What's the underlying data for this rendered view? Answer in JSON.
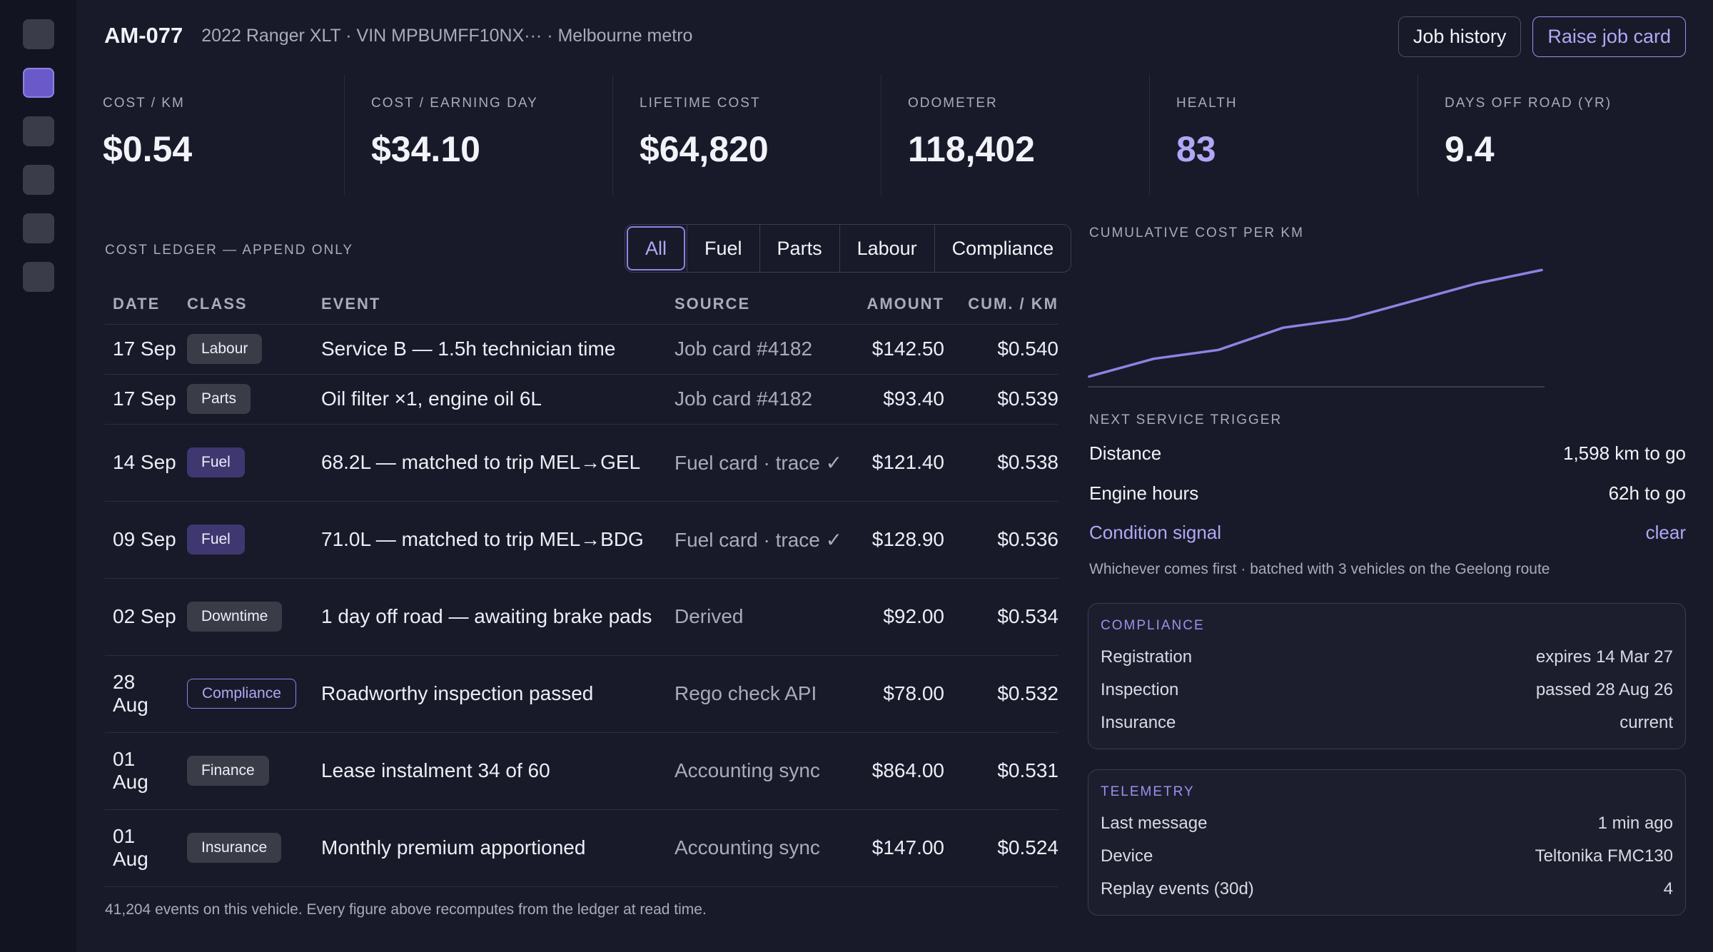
{
  "sidebar": {
    "items": [
      "nav-1",
      "nav-2",
      "nav-3",
      "nav-4",
      "nav-5",
      "nav-6"
    ],
    "active_index": 1
  },
  "header": {
    "unit_id": "AM-077",
    "subtitle": "2022 Ranger XLT · VIN MPBUMFF10NX··· · Melbourne metro",
    "job_history_label": "Job history",
    "raise_job_label": "Raise job card"
  },
  "kpis": [
    {
      "label": "COST / KM",
      "value": "$0.54"
    },
    {
      "label": "COST / EARNING DAY",
      "value": "$34.10"
    },
    {
      "label": "LIFETIME COST",
      "value": "$64,820"
    },
    {
      "label": "ODOMETER",
      "value": "118,402"
    },
    {
      "label": "HEALTH",
      "value": "83"
    },
    {
      "label": "DAYS OFF ROAD (YR)",
      "value": "9.4"
    }
  ],
  "ledger": {
    "title": "COST LEDGER — APPEND ONLY",
    "filters": [
      "All",
      "Fuel",
      "Parts",
      "Labour",
      "Compliance"
    ],
    "active_filter": "All",
    "columns": [
      "DATE",
      "CLASS",
      "EVENT",
      "SOURCE",
      "AMOUNT",
      "CUM. / KM"
    ],
    "rows": [
      {
        "date": "17 Sep",
        "class": "Labour",
        "event": "Service B — 1.5h technician time",
        "source": "Job card #4182",
        "amount": "$142.50",
        "cum": "$0.540"
      },
      {
        "date": "17 Sep",
        "class": "Parts",
        "event": "Oil filter ×1, engine oil 6L",
        "source": "Job card #4182",
        "amount": "$93.40",
        "cum": "$0.539"
      },
      {
        "date": "14 Sep",
        "class": "Fuel",
        "event": "68.2L — matched to trip MEL→GEL",
        "source": "Fuel card · trace ✓",
        "amount": "$121.40",
        "cum": "$0.538"
      },
      {
        "date": "09 Sep",
        "class": "Fuel",
        "event": "71.0L — matched to trip MEL→BDG",
        "source": "Fuel card · trace ✓",
        "amount": "$128.90",
        "cum": "$0.536"
      },
      {
        "date": "02 Sep",
        "class": "Downtime",
        "event": "1 day off road — awaiting brake pads",
        "source": "Derived",
        "amount": "$92.00",
        "cum": "$0.534"
      },
      {
        "date": "28 Aug",
        "class": "Compliance",
        "event": "Roadworthy inspection passed",
        "source": "Rego check API",
        "amount": "$78.00",
        "cum": "$0.532"
      },
      {
        "date": "01 Aug",
        "class": "Finance",
        "event": "Lease instalment 34 of 60",
        "source": "Accounting sync",
        "amount": "$864.00",
        "cum": "$0.531"
      },
      {
        "date": "01 Aug",
        "class": "Insurance",
        "event": "Monthly premium apportioned",
        "source": "Accounting sync",
        "amount": "$147.00",
        "cum": "$0.524"
      }
    ],
    "footer": "41,204 events on this vehicle. Every figure above recomputes from the ledger at read time."
  },
  "chart_data": {
    "type": "line",
    "title": "CUMULATIVE COST PER KM",
    "series": [
      {
        "values": [
          0.51,
          0.514,
          0.516,
          0.521,
          0.523,
          0.527,
          0.531,
          0.534
        ]
      }
    ],
    "ylim": [
      0.508,
      0.536
    ],
    "color": "#8f82e4",
    "grid": false
  },
  "next_service": {
    "title": "NEXT SERVICE TRIGGER",
    "rows": [
      {
        "k": "Distance",
        "v": "1,598 km to go"
      },
      {
        "k": "Engine hours",
        "v": "62h to go"
      },
      {
        "k": "Condition signal",
        "v": "clear"
      }
    ],
    "note": "Whichever comes first · batched with 3 vehicles on the Geelong route"
  },
  "compliance": {
    "title": "COMPLIANCE",
    "rows": [
      {
        "k": "Registration",
        "v": "expires 14 Mar 27"
      },
      {
        "k": "Inspection",
        "v": "passed 28 Aug 26"
      },
      {
        "k": "Insurance",
        "v": "current"
      }
    ]
  },
  "telemetry": {
    "title": "TELEMETRY",
    "rows": [
      {
        "k": "Last message",
        "v": "1 min ago"
      },
      {
        "k": "Device",
        "v": "Teltonika FMC130"
      },
      {
        "k": "Replay events (30d)",
        "v": "4"
      }
    ]
  },
  "colors": {
    "accent": "#8f82e4",
    "background": "#181a29",
    "rail": "#121421"
  }
}
